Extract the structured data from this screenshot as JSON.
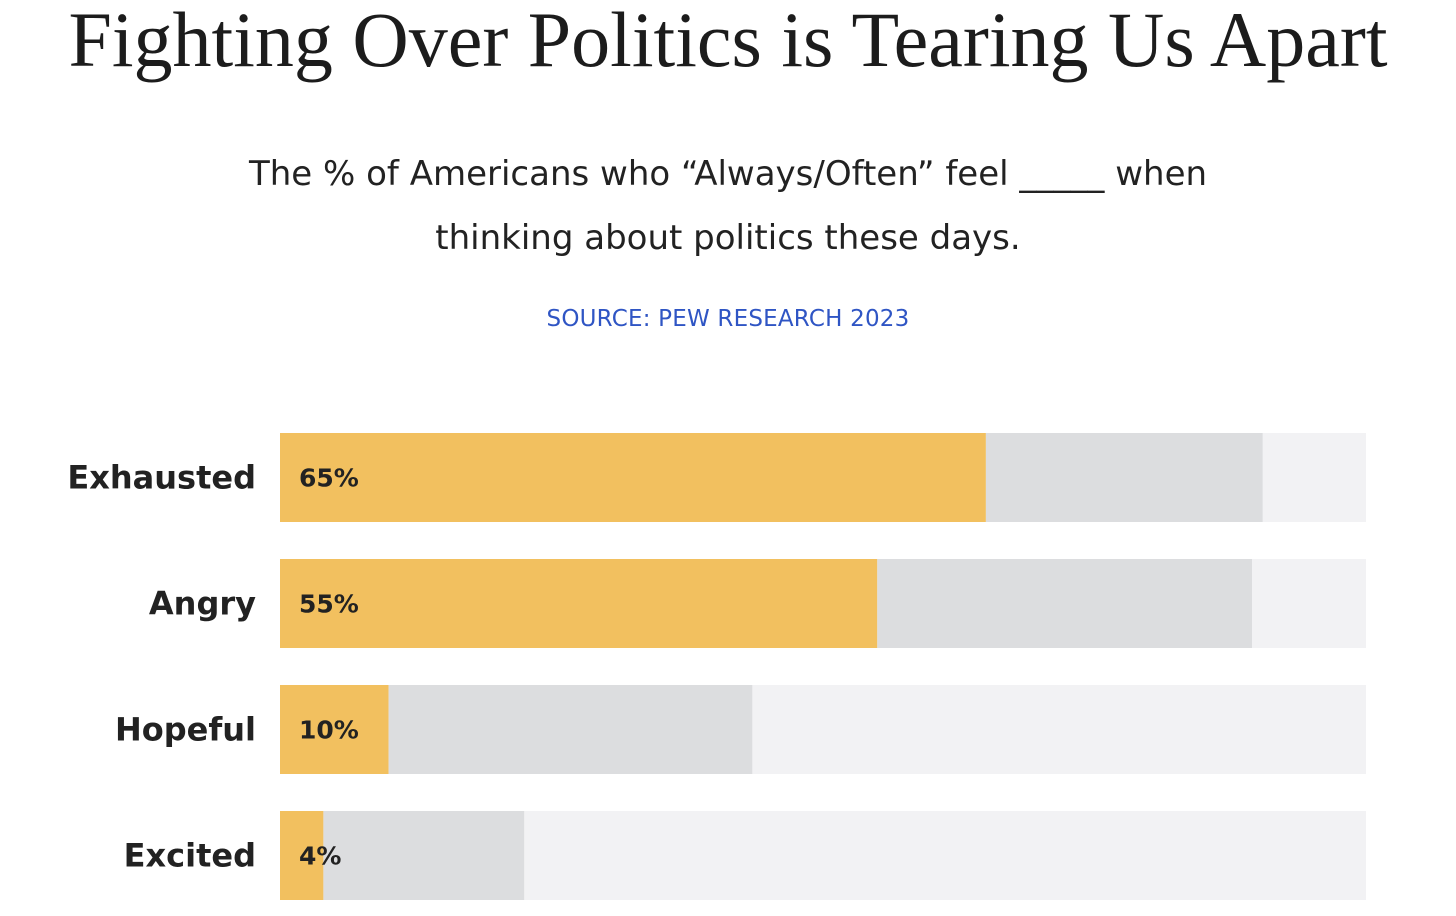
{
  "title": "Fighting Over Politics is Tearing Us Apart",
  "subtitle": "The % of Americans who “Always/Often” feel _____ when thinking about politics these days.",
  "source": "SOURCE: PEW RESEARCH 2023",
  "colors": {
    "always_often": "#f2c05f",
    "sometimes": "#dcdddf",
    "rest": "#f2f2f4",
    "source_text": "#2f55c4"
  },
  "chart_data": {
    "type": "bar",
    "orientation": "horizontal",
    "stacked": true,
    "categories": [
      "Exhausted",
      "Angry",
      "Hopeful",
      "Excited"
    ],
    "series": [
      {
        "values": [
          65,
          55,
          10,
          4
        ],
        "labels": [
          "65%",
          "55%",
          "10%",
          "4%"
        ],
        "color": "#f2c05f"
      },
      {
        "values": [
          25.5,
          34.5,
          33.5,
          18.5
        ],
        "color": "#dcdddf"
      },
      {
        "values": [
          9.5,
          10.5,
          56.5,
          77.5
        ],
        "color": "#f2f2f4"
      }
    ],
    "xlim": [
      0,
      100
    ],
    "grid": false,
    "legend": "none"
  }
}
